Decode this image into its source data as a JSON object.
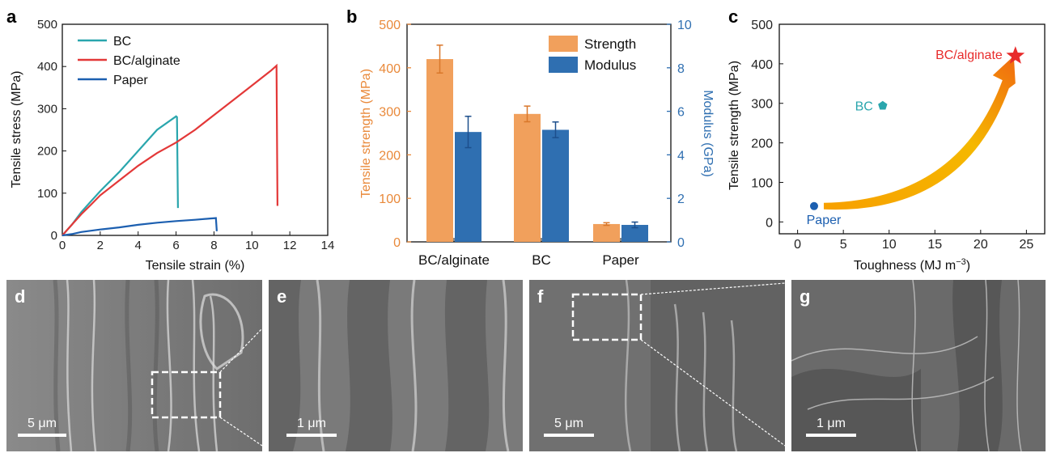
{
  "panels": {
    "a": {
      "letter": "a"
    },
    "b": {
      "letter": "b"
    },
    "c": {
      "letter": "c"
    },
    "d": {
      "letter": "d",
      "scale_bar": "5 μm"
    },
    "e": {
      "letter": "e",
      "scale_bar": "1 μm"
    },
    "f": {
      "letter": "f",
      "scale_bar": "5 μm"
    },
    "g": {
      "letter": "g",
      "scale_bar": "1 μm"
    }
  },
  "chart_data": [
    {
      "id": "a",
      "type": "line",
      "xlabel": "Tensile strain (%)",
      "ylabel": "Tensile stress (MPa)",
      "xlim": [
        0,
        14
      ],
      "ylim": [
        0,
        500
      ],
      "xticks": [
        0,
        2,
        4,
        6,
        8,
        10,
        12,
        14
      ],
      "yticks": [
        0,
        100,
        200,
        300,
        400,
        500
      ],
      "legend_position": "top-left",
      "series": [
        {
          "name": "BC",
          "color": "#2aa6ad",
          "points": [
            [
              0,
              0
            ],
            [
              0.5,
              25
            ],
            [
              1,
              55
            ],
            [
              1.5,
              80
            ],
            [
              2,
              105
            ],
            [
              3,
              150
            ],
            [
              4,
              200
            ],
            [
              5,
              250
            ],
            [
              6,
              282
            ],
            [
              6.05,
              280
            ],
            [
              6.1,
              65
            ]
          ]
        },
        {
          "name": "BC/alginate",
          "color": "#e33838",
          "points": [
            [
              0,
              0
            ],
            [
              0.5,
              25
            ],
            [
              1,
              50
            ],
            [
              1.5,
              72
            ],
            [
              2,
              95
            ],
            [
              3,
              130
            ],
            [
              4,
              165
            ],
            [
              5,
              195
            ],
            [
              6,
              220
            ],
            [
              7,
              250
            ],
            [
              8,
              285
            ],
            [
              9,
              320
            ],
            [
              10,
              355
            ],
            [
              11,
              390
            ],
            [
              11.3,
              402
            ],
            [
              11.35,
              70
            ]
          ]
        },
        {
          "name": "Paper",
          "color": "#1c5fb0",
          "points": [
            [
              0,
              0
            ],
            [
              0.5,
              3
            ],
            [
              1,
              8
            ],
            [
              2,
              14
            ],
            [
              3,
              19
            ],
            [
              4,
              25
            ],
            [
              5,
              30
            ],
            [
              6,
              34
            ],
            [
              7,
              37
            ],
            [
              7.8,
              40
            ],
            [
              8.1,
              41
            ],
            [
              8.15,
              10
            ]
          ]
        }
      ]
    },
    {
      "id": "b",
      "type": "bar",
      "ylabel": "Tensile strength (MPa)",
      "y2label": "Modulus (GPa)",
      "ylim": [
        0,
        500
      ],
      "y2lim": [
        0,
        10
      ],
      "yticks": [
        0,
        100,
        200,
        300,
        400,
        500
      ],
      "y2ticks": [
        0,
        2,
        4,
        6,
        8,
        10
      ],
      "categories": [
        "BC/alginate",
        "BC",
        "Paper"
      ],
      "legend_position": "top-right",
      "series": [
        {
          "name": "Strength",
          "axis": "left",
          "color": "#f1a05c",
          "values": [
            420,
            294,
            41
          ],
          "errors": [
            32,
            18,
            3
          ]
        },
        {
          "name": "Modulus",
          "axis": "right",
          "color": "#2f6fb1",
          "values": [
            5.05,
            5.15,
            0.78
          ],
          "errors": [
            0.72,
            0.36,
            0.13
          ]
        }
      ]
    },
    {
      "id": "c",
      "type": "scatter",
      "xlabel": "Toughness (MJ m",
      "xlabel_superscript": "−3",
      "xlabel_suffix": ")",
      "ylabel": "Tensile strength (MPa)",
      "xlim": [
        -2,
        27
      ],
      "ylim": [
        -30,
        500
      ],
      "xticks": [
        0,
        5,
        10,
        15,
        20,
        25
      ],
      "yticks": [
        0,
        100,
        200,
        300,
        400,
        500
      ],
      "points": [
        {
          "label": "Paper",
          "x": 1.8,
          "y": 40,
          "color": "#1c5fb0",
          "marker": "circle"
        },
        {
          "label": "BC",
          "x": 9.3,
          "y": 294,
          "color": "#2aa6ad",
          "marker": "pentagon"
        },
        {
          "label": "BC/alginate",
          "x": 23.8,
          "y": 420,
          "color": "#e82b2b",
          "marker": "star"
        }
      ]
    }
  ]
}
